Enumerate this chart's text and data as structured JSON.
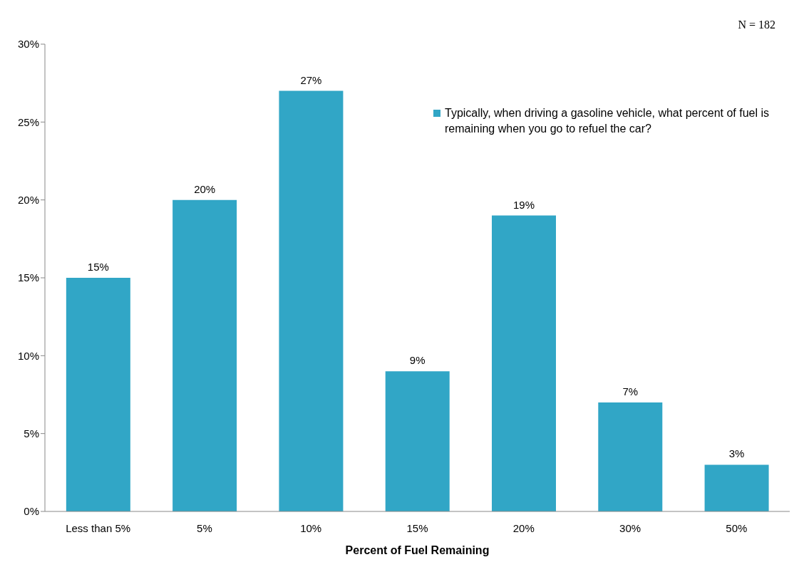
{
  "chart_data": {
    "type": "bar",
    "xlabel": "Percent of Fuel Remaining",
    "categories": [
      "Less than 5%",
      "5%",
      "10%",
      "15%",
      "20%",
      "30%",
      "50%"
    ],
    "series": [
      {
        "name": "Typically, when driving a gasoline vehicle, what percent of fuel is remaining when you go to refuel the car?",
        "color": "#31a6c6",
        "values": [
          15,
          20,
          27,
          9,
          19,
          7,
          3
        ],
        "value_labels": [
          "15%",
          "20%",
          "27%",
          "9%",
          "19%",
          "7%",
          "3%"
        ]
      }
    ],
    "ylim": [
      0,
      30
    ],
    "yticks": [
      {
        "value": 0,
        "label": "0%"
      },
      {
        "value": 5,
        "label": "5%"
      },
      {
        "value": 10,
        "label": "10%"
      },
      {
        "value": 15,
        "label": "15%"
      },
      {
        "value": 20,
        "label": "20%"
      },
      {
        "value": 25,
        "label": "25%"
      },
      {
        "value": 30,
        "label": "30%"
      }
    ],
    "grid": false,
    "legend": "top right",
    "annotations": [
      "N = 182"
    ]
  }
}
